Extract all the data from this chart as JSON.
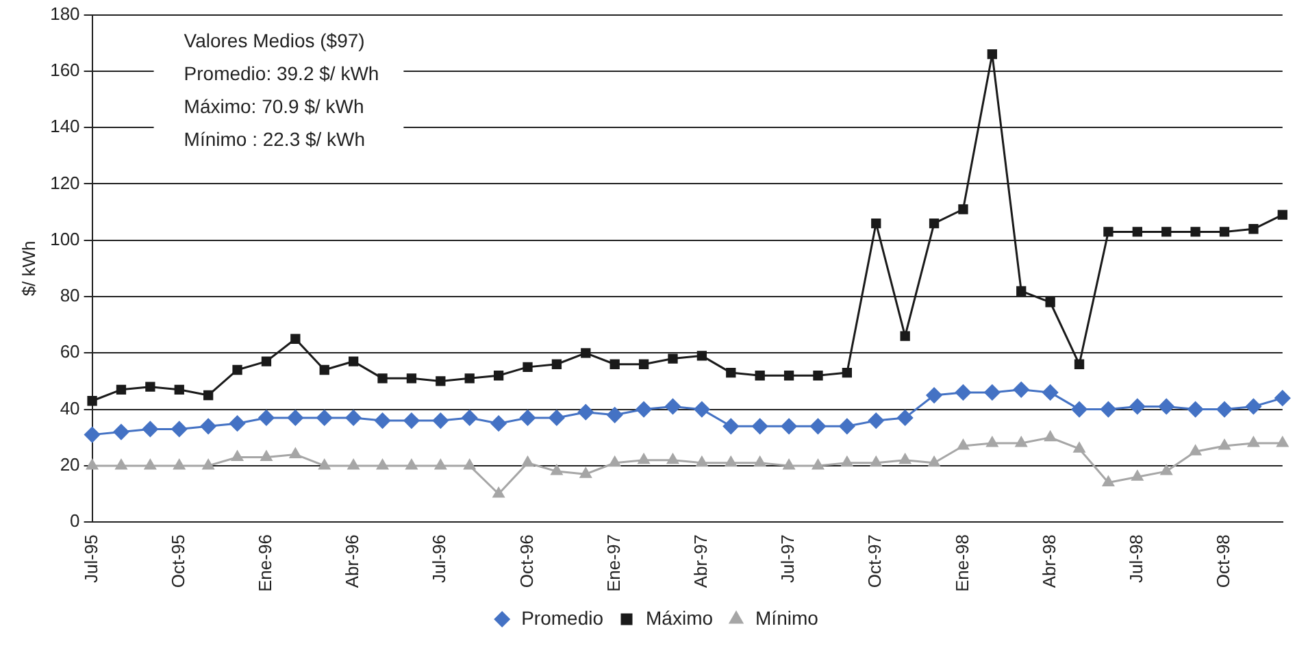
{
  "chart_data": {
    "type": "line",
    "ylabel": "$/ kWh",
    "categories": [
      "Jul-95",
      null,
      null,
      "Oct-95",
      null,
      null,
      "Ene-96",
      null,
      null,
      "Abr-96",
      null,
      null,
      "Jul-96",
      null,
      null,
      "Oct-96",
      null,
      null,
      "Ene-97",
      null,
      null,
      "Abr-97",
      null,
      null,
      "Jul-97",
      null,
      null,
      "Oct-97",
      null,
      null,
      "Ene-98",
      null,
      null,
      "Abr-98",
      null,
      null,
      "Jul-98",
      null,
      null,
      "Oct-98",
      null,
      null
    ],
    "series": [
      {
        "name": "Promedio",
        "color": "#4472c4",
        "marker": "diamond",
        "values": [
          31,
          32,
          33,
          33,
          34,
          35,
          37,
          37,
          37,
          37,
          36,
          36,
          36,
          37,
          35,
          37,
          37,
          39,
          38,
          40,
          41,
          40,
          34,
          34,
          34,
          34,
          34,
          36,
          37,
          45,
          46,
          46,
          47,
          46,
          40,
          40,
          41,
          41,
          40,
          40,
          41,
          44
        ]
      },
      {
        "name": "Máximo",
        "color": "#1a1a1a",
        "marker": "square",
        "values": [
          43,
          47,
          48,
          47,
          45,
          54,
          57,
          65,
          54,
          57,
          51,
          51,
          50,
          51,
          52,
          55,
          56,
          60,
          56,
          56,
          58,
          59,
          53,
          52,
          52,
          52,
          53,
          106,
          66,
          106,
          111,
          166,
          82,
          78,
          56,
          103,
          103,
          103,
          103,
          103,
          104,
          109
        ]
      },
      {
        "name": "Mínimo",
        "color": "#a6a6a6",
        "marker": "triangle",
        "values": [
          20,
          20,
          20,
          20,
          20,
          23,
          23,
          24,
          20,
          20,
          20,
          20,
          20,
          20,
          10,
          21,
          18,
          17,
          21,
          22,
          22,
          21,
          21,
          21,
          20,
          20,
          21,
          21,
          22,
          21,
          27,
          28,
          28,
          30,
          26,
          14,
          16,
          18,
          25,
          27,
          28,
          28
        ]
      }
    ],
    "ylim": [
      0,
      180
    ],
    "yticks": [
      0,
      20,
      40,
      60,
      80,
      100,
      120,
      140,
      160,
      180
    ],
    "grid": "y",
    "legend": "bottom",
    "line_style": "solid",
    "annotations": [
      "Valores Medios ($97)",
      "Promedio: 39.2 $/ kWh",
      "Máximo: 70.9 $/ kWh",
      "Mínimo : 22.3 $/ kWh"
    ]
  }
}
